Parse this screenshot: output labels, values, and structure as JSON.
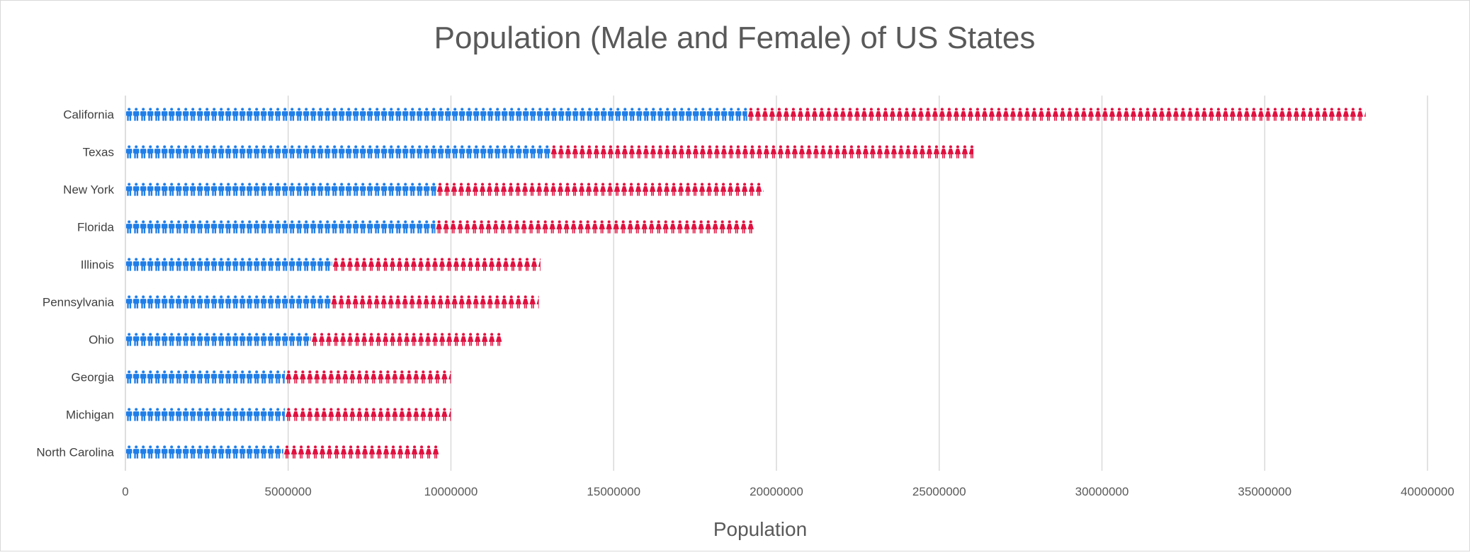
{
  "chart_data": {
    "type": "bar",
    "orientation": "horizontal",
    "stacked": true,
    "marker_style": "pictograph",
    "title": "Population (Male and Female) of US States",
    "xlabel": "Population",
    "ylabel": "",
    "xlim": [
      0,
      40000000
    ],
    "xticks": [
      0,
      5000000,
      10000000,
      15000000,
      20000000,
      25000000,
      30000000,
      35000000,
      40000000
    ],
    "xtick_labels": [
      "0",
      "5000000",
      "10000000",
      "15000000",
      "20000000",
      "25000000",
      "30000000",
      "35000000",
      "40000000"
    ],
    "grid": true,
    "legend": "none",
    "categories": [
      "California",
      "Texas",
      "New York",
      "Florida",
      "Illinois",
      "Pennsylvania",
      "Ohio",
      "Georgia",
      "Michigan",
      "North Carolina"
    ],
    "series": [
      {
        "color": "#1f7ee8",
        "icon": "male-person-icon",
        "values": [
          19100000,
          13050000,
          9550000,
          9520000,
          6350000,
          6300000,
          5700000,
          4900000,
          4900000,
          4850000
        ]
      },
      {
        "color": "#e0103f",
        "icon": "female-person-icon",
        "values": [
          19000000,
          13000000,
          10050000,
          9800000,
          6400000,
          6400000,
          5900000,
          5100000,
          5100000,
          4800000
        ]
      }
    ]
  }
}
